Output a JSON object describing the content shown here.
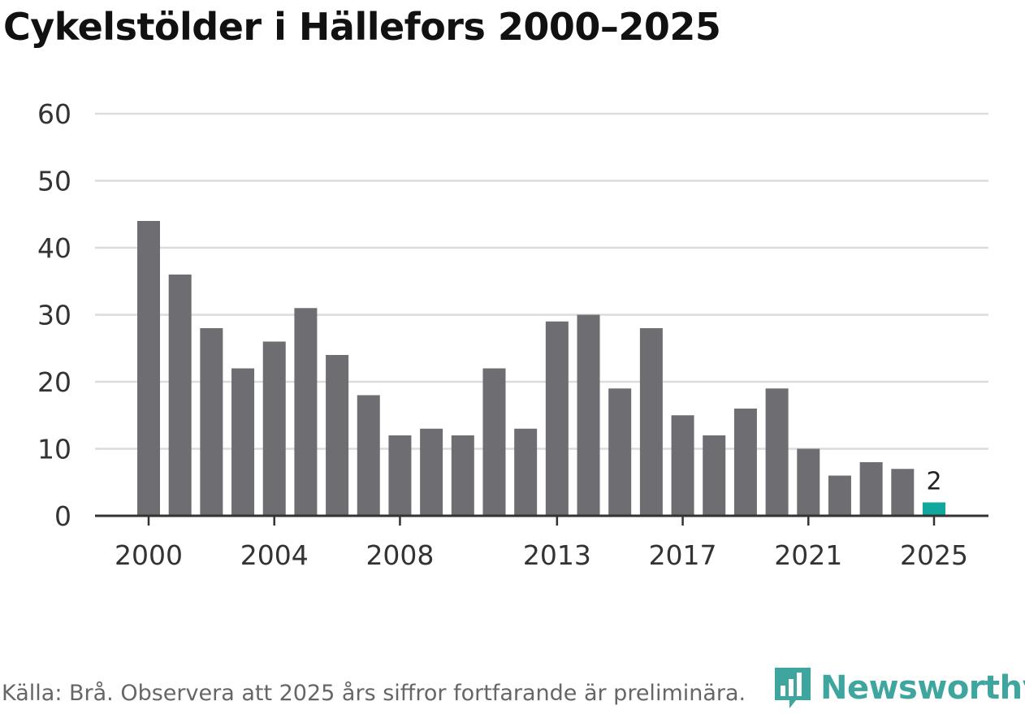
{
  "chart_data": {
    "type": "bar",
    "title": "Cykelstölder i Hällefors 2000–2025",
    "categories": [
      "2000",
      "2001",
      "2002",
      "2003",
      "2004",
      "2005",
      "2006",
      "2007",
      "2008",
      "2009",
      "2010",
      "2011",
      "2012",
      "2013",
      "2014",
      "2015",
      "2016",
      "2017",
      "2018",
      "2019",
      "2020",
      "2021",
      "2022",
      "2023",
      "2024",
      "2025"
    ],
    "values": [
      44,
      36,
      28,
      22,
      26,
      31,
      24,
      18,
      12,
      13,
      12,
      22,
      13,
      29,
      30,
      19,
      28,
      15,
      12,
      16,
      19,
      10,
      6,
      8,
      7,
      2
    ],
    "x_tick_labels": [
      "2000",
      "2004",
      "2008",
      "2013",
      "2017",
      "2021",
      "2025"
    ],
    "y_ticks": [
      0,
      10,
      20,
      30,
      40,
      50,
      60
    ],
    "ylim": [
      0,
      60
    ],
    "xlabel": "",
    "ylabel": "",
    "highlight": {
      "category": "2025",
      "label": "2"
    },
    "colors": {
      "bar": "#6e6d72",
      "highlight": "#12a79d",
      "grid": "#dcdcdc",
      "axis": "#333333"
    },
    "source": "Källa: Brå. Observera att 2025 års siffror fortfarande är preliminära."
  },
  "logo": {
    "text": "Newsworthy"
  }
}
